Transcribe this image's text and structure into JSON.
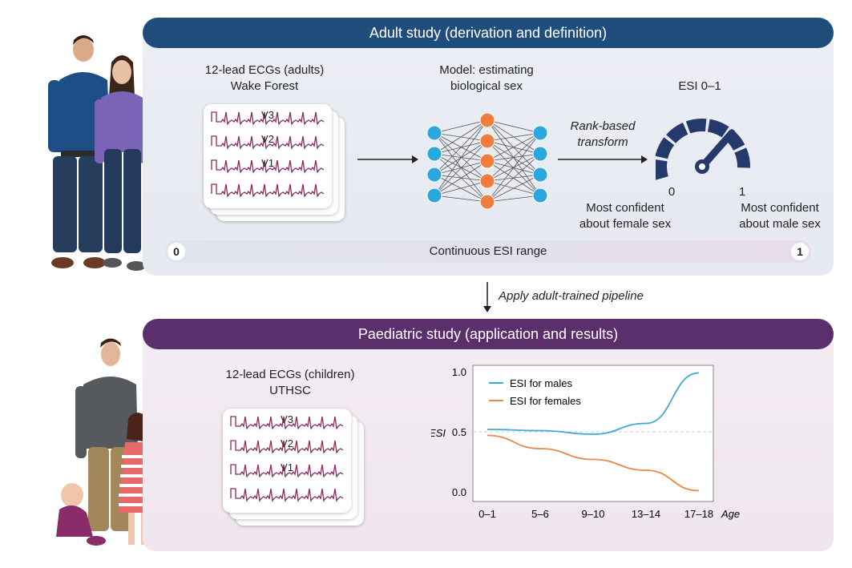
{
  "adult": {
    "banner": "Adult study (derivation and definition)",
    "ecg_title_1": "12-lead ECGs (adults)",
    "ecg_title_2": "Wake Forest",
    "leads": [
      "V3",
      "V2",
      "V1"
    ],
    "model_title_1": "Model: estimating",
    "model_title_2": "biological sex",
    "transform_1": "Rank-based",
    "transform_2": "transform",
    "gauge_title": "ESI 0–1",
    "gauge_min": "0",
    "gauge_max": "1",
    "female_1": "Most confident",
    "female_2": "about female sex",
    "male_1": "Most confident",
    "male_2": "about male sex",
    "range_label": "Continuous ESI range",
    "range_min": "0",
    "range_max": "1"
  },
  "apply_label": "Apply adult-trained pipeline",
  "peds": {
    "banner": "Paediatric study (application and results)",
    "ecg_title_1": "12-lead ECGs (children)",
    "ecg_title_2": "UTHSC",
    "leads": [
      "V3",
      "V2",
      "V1"
    ]
  },
  "colors": {
    "adult_banner": "#1f4e7d",
    "peds_banner": "#5b2f6b",
    "males": "#3ba9d4",
    "females": "#e8884a",
    "ecg_trace": "#8b2a5e",
    "node_blue": "#2aa7dc",
    "node_orange": "#ef7d3c"
  },
  "chart_data": {
    "type": "line",
    "categories": [
      "0–1",
      "5–6",
      "9–10",
      "13–14",
      "17–18"
    ],
    "xlabel": "Age",
    "ylabel": "ESI",
    "ylim": [
      0,
      1
    ],
    "yticks": [
      "0.0",
      "0.5",
      "1.0"
    ],
    "reference_line": 0.5,
    "legend_position": "top-left",
    "series": [
      {
        "name": "ESI for males",
        "values": [
          0.52,
          0.51,
          0.48,
          0.57,
          0.99
        ]
      },
      {
        "name": "ESI for females",
        "values": [
          0.47,
          0.36,
          0.27,
          0.18,
          0.01
        ]
      }
    ]
  }
}
